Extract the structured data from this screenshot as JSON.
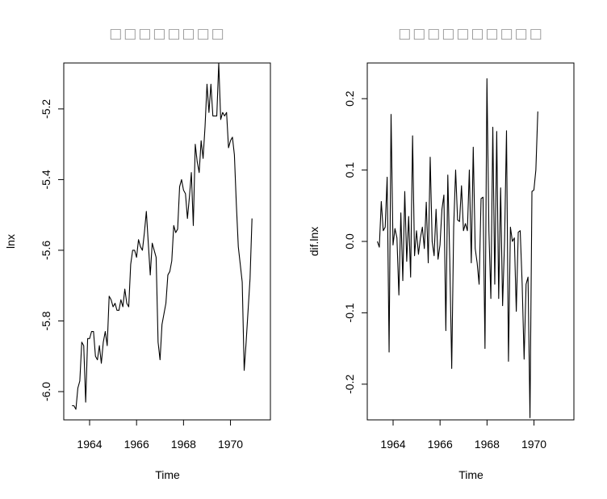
{
  "chart_data": [
    {
      "type": "line",
      "title": "□□□□□□□□",
      "xlabel": "Time",
      "ylabel": "lnx",
      "xlim": [
        1962.9,
        1971.7
      ],
      "ylim": [
        -6.08,
        -5.07
      ],
      "x_ticks": [
        1964,
        1966,
        1968,
        1970
      ],
      "x_tick_labels": [
        "1964",
        "1966",
        "1968",
        "1970"
      ],
      "y_ticks": [
        -6.0,
        -5.8,
        -5.6,
        -5.4,
        -5.2
      ],
      "y_tick_labels": [
        "-6.0",
        "-5.8",
        "-5.6",
        "-5.4",
        "-5.2"
      ],
      "grid": false,
      "series": [
        {
          "x_start": 1963.25,
          "x_step": 0.08333,
          "values": [
            -6.04,
            -6.04,
            -6.05,
            -5.99,
            -5.97,
            -5.86,
            -5.87,
            -6.03,
            -5.85,
            -5.85,
            -5.83,
            -5.83,
            -5.9,
            -5.91,
            -5.87,
            -5.92,
            -5.86,
            -5.83,
            -5.87,
            -5.73,
            -5.74,
            -5.76,
            -5.75,
            -5.77,
            -5.77,
            -5.74,
            -5.76,
            -5.71,
            -5.75,
            -5.76,
            -5.64,
            -5.6,
            -5.6,
            -5.62,
            -5.57,
            -5.59,
            -5.6,
            -5.55,
            -5.49,
            -5.58,
            -5.67,
            -5.58,
            -5.6,
            -5.62,
            -5.86,
            -5.91,
            -5.81,
            -5.78,
            -5.75,
            -5.67,
            -5.66,
            -5.63,
            -5.53,
            -5.55,
            -5.54,
            -5.42,
            -5.4,
            -5.43,
            -5.44,
            -5.51,
            -5.45,
            -5.38,
            -5.53,
            -5.3,
            -5.35,
            -5.38,
            -5.29,
            -5.34,
            -5.25,
            -5.13,
            -5.21,
            -5.13,
            -5.22,
            -5.22,
            -5.22,
            -5.07,
            -5.23,
            -5.21,
            -5.22,
            -5.21,
            -5.31,
            -5.29,
            -5.28,
            -5.33,
            -5.47,
            -5.59,
            -5.64,
            -5.69,
            -5.94,
            -5.86,
            -5.77,
            -5.68,
            -5.51
          ]
        }
      ]
    },
    {
      "type": "line",
      "title": "□□□□□□□□□□",
      "xlabel": "Time",
      "ylabel": "dif.lnx",
      "xlim": [
        1962.9,
        1971.7
      ],
      "ylim": [
        -0.25,
        0.25
      ],
      "x_ticks": [
        1964,
        1966,
        1968,
        1970
      ],
      "x_tick_labels": [
        "1964",
        "1966",
        "1968",
        "1970"
      ],
      "y_ticks": [
        -0.2,
        -0.1,
        0.0,
        0.1,
        0.2
      ],
      "y_tick_labels": [
        "-0.2",
        "-0.1",
        "0.0",
        "0.1",
        "0.2"
      ],
      "grid": false,
      "series": [
        {
          "x_start": 1963.33,
          "x_step": 0.08333,
          "values": [
            0.0,
            -0.008,
            0.056,
            0.015,
            0.02,
            0.09,
            -0.155,
            0.178,
            -0.005,
            0.018,
            0.005,
            -0.075,
            0.04,
            -0.055,
            0.07,
            -0.028,
            0.035,
            -0.05,
            0.148,
            -0.02,
            0.015,
            -0.018,
            0.005,
            0.02,
            -0.01,
            0.055,
            -0.03,
            0.118,
            0.0,
            -0.02,
            0.045,
            -0.025,
            -0.005,
            0.045,
            0.065,
            -0.125,
            0.093,
            -0.025,
            -0.178,
            0.02,
            0.1,
            0.03,
            0.028,
            0.078,
            0.015,
            0.025,
            0.015,
            0.1,
            -0.03,
            0.132,
            -0.01,
            -0.03,
            -0.06,
            0.06,
            0.062,
            -0.15,
            0.228,
            0.015,
            -0.08,
            0.16,
            -0.06,
            0.154,
            -0.08,
            0.075,
            -0.09,
            0.0,
            0.155,
            -0.168,
            0.02,
            0.0,
            0.005,
            -0.098,
            0.013,
            0.015,
            -0.06,
            -0.165,
            -0.06,
            -0.05,
            -0.247,
            0.07,
            0.072,
            0.1,
            0.182
          ]
        }
      ]
    }
  ]
}
